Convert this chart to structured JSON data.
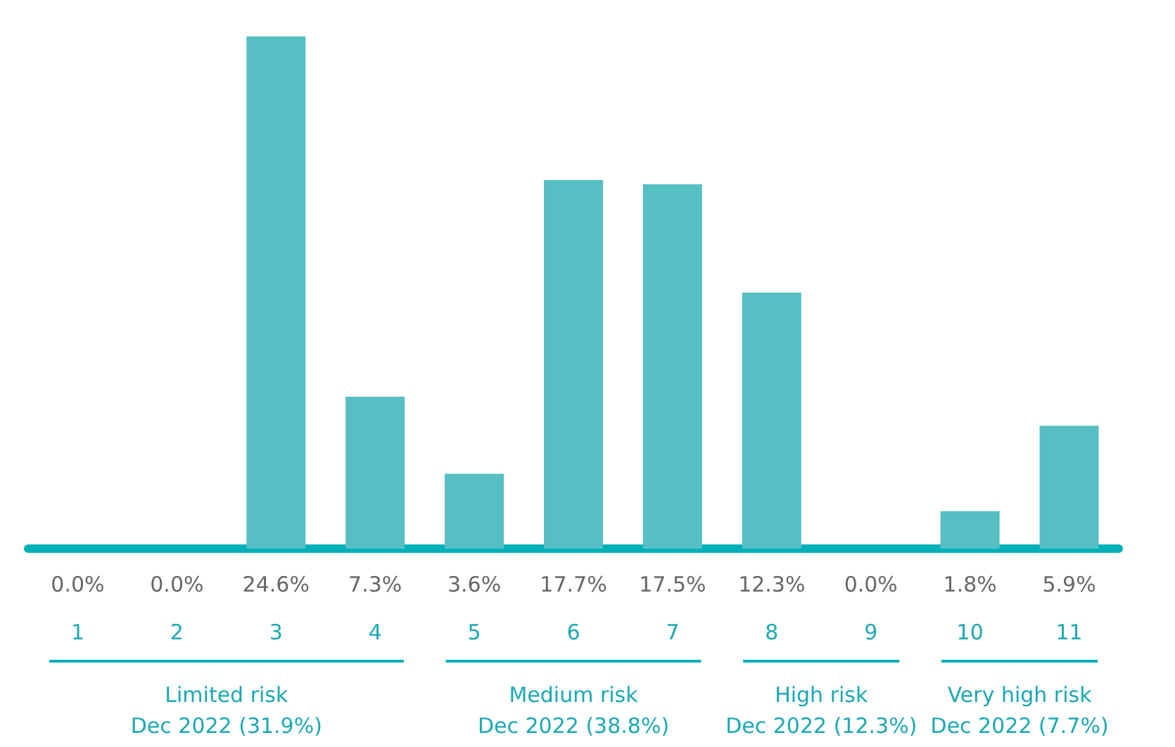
{
  "chart_data": {
    "type": "bar",
    "categories": [
      "1",
      "2",
      "3",
      "4",
      "5",
      "6",
      "7",
      "8",
      "9",
      "10",
      "11"
    ],
    "values": [
      0.0,
      0.0,
      24.6,
      7.3,
      3.6,
      17.7,
      17.5,
      12.3,
      0.0,
      1.8,
      5.9
    ],
    "value_labels": [
      "0.0%",
      "0.0%",
      "24.6%",
      "7.3%",
      "3.6%",
      "17.7%",
      "17.5%",
      "12.3%",
      "0.0%",
      "1.8%",
      "5.9%"
    ],
    "color": "#55bfc4",
    "grid": false,
    "annotations": [
      "Limited risk\nDec 2022 (31.9%)",
      "Medium risk\nDec 2022 (38.8%)",
      "High risk\nDec 2022 (12.3%)",
      "Very high risk\nDec 2022 (7.7%)"
    ]
  }
}
